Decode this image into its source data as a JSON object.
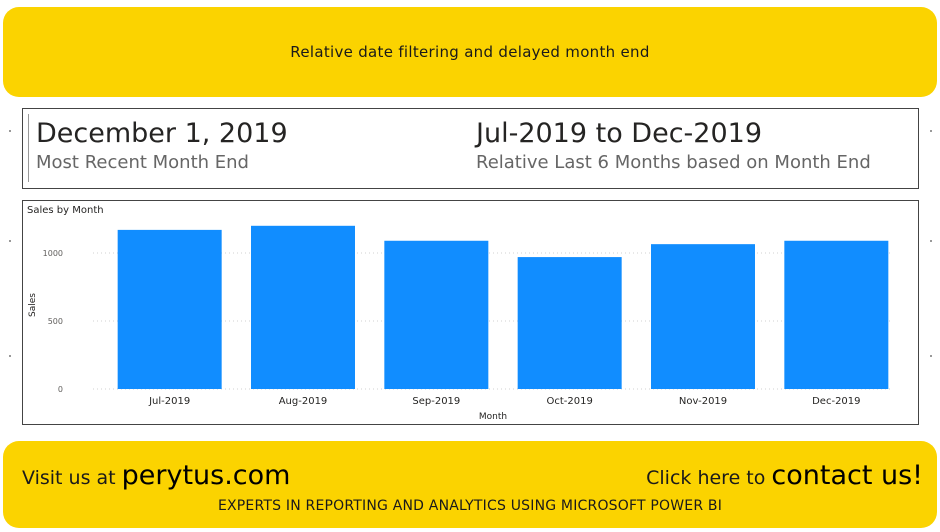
{
  "header": {
    "title": "Relative date filtering and delayed month end"
  },
  "cards": {
    "left": {
      "value": "December 1, 2019",
      "label": "Most Recent Month End"
    },
    "right": {
      "value": "Jul-2019 to Dec-2019",
      "label": "Relative Last 6 Months based on Month End"
    }
  },
  "chart_data": {
    "type": "bar",
    "title": "Sales by Month",
    "xlabel": "Month",
    "ylabel": "Sales",
    "categories": [
      "Jul-2019",
      "Aug-2019",
      "Sep-2019",
      "Oct-2019",
      "Nov-2019",
      "Dec-2019"
    ],
    "values": [
      1170,
      1200,
      1090,
      970,
      1065,
      1090
    ],
    "ylim": [
      0,
      1250
    ],
    "yticks": [
      0,
      500,
      1000
    ],
    "grid": true,
    "bar_color": "#118dff"
  },
  "footer": {
    "visit_prefix": "Visit us at",
    "visit_link": "perytus.com",
    "contact_prefix": "Click here to",
    "contact_link": "contact us!",
    "tagline": "EXPERTS IN REPORTING AND ANALYTICS USING MICROSOFT POWER BI"
  },
  "colors": {
    "banner": "#fbd300",
    "accent": "#118dff"
  }
}
